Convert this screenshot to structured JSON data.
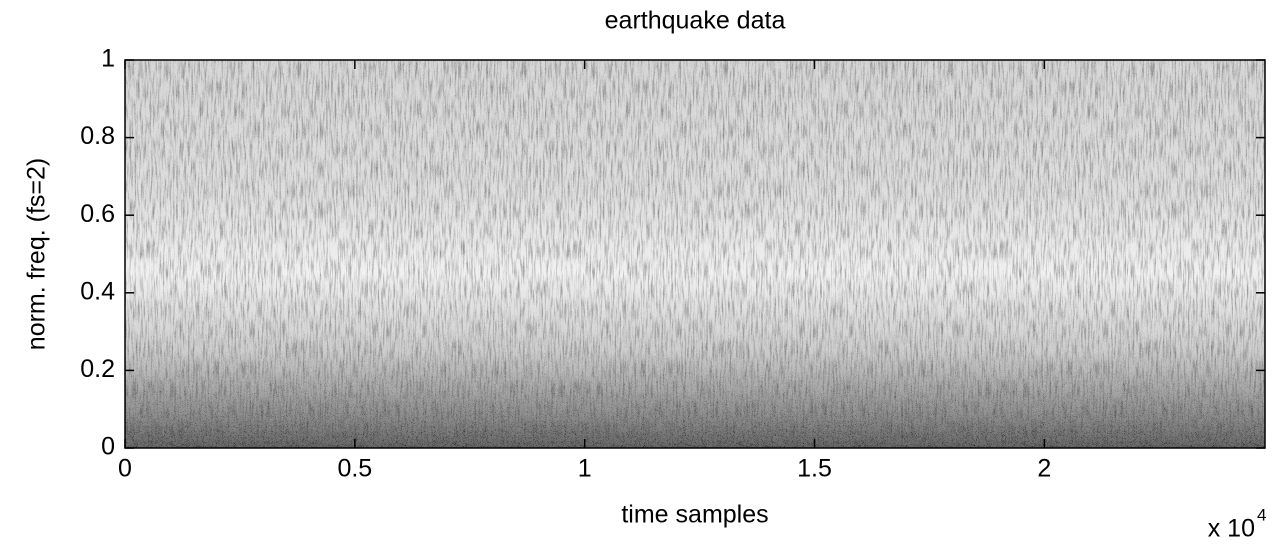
{
  "chart_data": {
    "type": "spectrogram",
    "title": "earthquake data",
    "x_label": "time samples",
    "y_label": "norm. freq. (fs=2)",
    "x_multiplier": {
      "base": "x 10",
      "exponent": "4"
    },
    "xlim": [
      0,
      24800
    ],
    "ylim": [
      0,
      1
    ],
    "xticks": [
      0,
      {
        "value": 5000,
        "label": "0.5"
      },
      {
        "value": 10000,
        "label": "1"
      },
      {
        "value": 15000,
        "label": "1.5"
      },
      {
        "value": 20000,
        "label": "2"
      }
    ],
    "yticks": [
      0,
      0.2,
      0.4,
      0.6,
      0.8,
      1
    ],
    "colormap": "gray",
    "grid": false
  }
}
